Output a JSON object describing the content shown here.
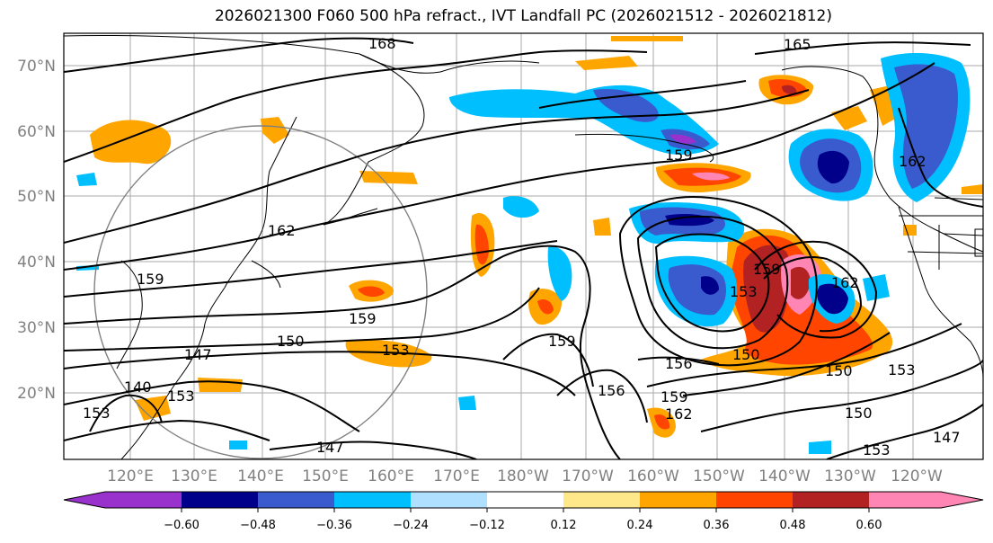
{
  "title": "2026021300 F060 500 hPa refract., IVT Landfall PC (2026021512 - 2026021812)",
  "lat_labels": [
    "70°N",
    "60°N",
    "50°N",
    "40°N",
    "30°N",
    "20°N"
  ],
  "lon_labels": [
    "120°E",
    "130°E",
    "140°E",
    "150°E",
    "160°E",
    "170°E",
    "180°W",
    "170°W",
    "160°W",
    "150°W",
    "140°W",
    "130°W",
    "120°W"
  ],
  "colorbar": {
    "ticks": [
      "−0.60",
      "−0.48",
      "−0.36",
      "−0.24",
      "−0.12",
      "0.12",
      "0.24",
      "0.36",
      "0.48",
      "0.60"
    ],
    "colors": [
      "#9932cc",
      "#00008b",
      "#3a5bcd",
      "#00bfff",
      "#b0e0ff",
      "#ffffff",
      "#ffe88a",
      "#ffa500",
      "#ff4500",
      "#b22222",
      "#ff85b4"
    ]
  },
  "contour_labels": [
    "168",
    "165",
    "162",
    "159",
    "159",
    "162",
    "159",
    "159",
    "150",
    "153",
    "147",
    "140",
    "153",
    "153",
    "147",
    "156",
    "156",
    "159",
    "162",
    "150",
    "153",
    "150",
    "150",
    "147",
    "162",
    "153",
    "159",
    "153"
  ]
}
